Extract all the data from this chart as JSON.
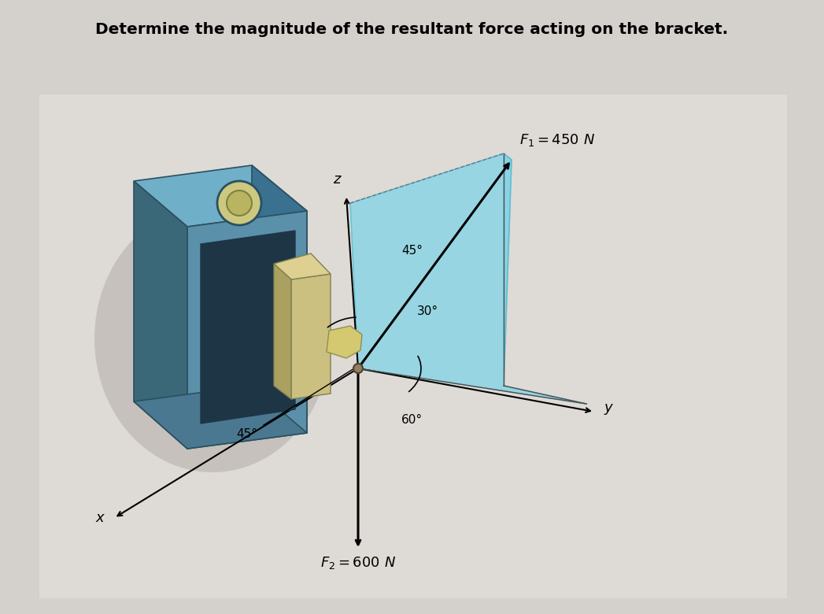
{
  "title": "Determine the magnitude of the resultant force acting on the bracket.",
  "title_fontsize": 14.5,
  "background_color": "#d4d0cc",
  "bg_light": "#e8e4e0",
  "bracket_front": "#5a8faa",
  "bracket_top": "#6aa2b8",
  "bracket_left": "#3a6878",
  "bracket_dark_inner": "#1e3a4a",
  "bracket_bottom": "#4a7890",
  "tan_light": "#ccc080",
  "tan_dark": "#aaa060",
  "shadow_color": "#b0aca8",
  "cyan_fill": "#7ad4e8",
  "cyan_edge": "#50b8d0",
  "cyan_alpha": 0.7,
  "F1_label": "$F_1 = 450$ N",
  "F2_label": "$F_2 = 600$ N",
  "wall_color": "#c8c4c0",
  "wall_shadow": "#a8a4a0"
}
